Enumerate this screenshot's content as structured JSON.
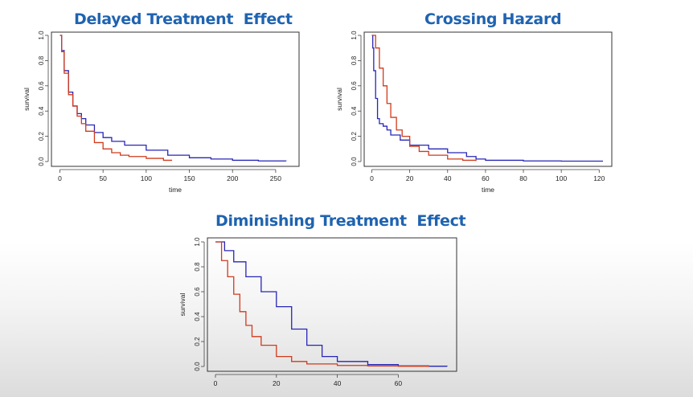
{
  "chart_data": [
    {
      "type": "line",
      "title": "Delayed Treatment  Effect",
      "xlabel": "time",
      "ylabel": "survival",
      "xlim": [
        0,
        265
      ],
      "ylim": [
        0,
        1.0
      ],
      "xticks": [
        "0",
        "50",
        "100",
        "150",
        "200",
        "250"
      ],
      "yticks": [
        "0.0",
        "0.2",
        "0.4",
        "0.6",
        "0.8",
        "1.0"
      ],
      "series": [
        {
          "name": "blue",
          "color": "#2626b8",
          "x": [
            0,
            2,
            5,
            10,
            15,
            20,
            25,
            30,
            40,
            50,
            60,
            75,
            100,
            125,
            150,
            175,
            200,
            230,
            262
          ],
          "y": [
            1.0,
            0.88,
            0.72,
            0.55,
            0.44,
            0.38,
            0.34,
            0.29,
            0.23,
            0.19,
            0.16,
            0.13,
            0.09,
            0.05,
            0.03,
            0.02,
            0.01,
            0.005,
            0.003
          ]
        },
        {
          "name": "red",
          "color": "#d03a1c",
          "x": [
            0,
            2,
            5,
            10,
            15,
            20,
            25,
            30,
            40,
            50,
            60,
            70,
            80,
            100,
            120,
            130
          ],
          "y": [
            1.0,
            0.87,
            0.7,
            0.53,
            0.44,
            0.36,
            0.3,
            0.24,
            0.15,
            0.1,
            0.07,
            0.05,
            0.04,
            0.025,
            0.01,
            0.01
          ]
        }
      ]
    },
    {
      "type": "line",
      "title": "Crossing Hazard",
      "xlabel": "time",
      "ylabel": "survival",
      "xlim": [
        0,
        122
      ],
      "ylim": [
        0,
        1.0
      ],
      "xticks": [
        "0",
        "20",
        "40",
        "60",
        "80",
        "100",
        "120"
      ],
      "yticks": [
        "0.0",
        "0.2",
        "0.4",
        "0.6",
        "0.8",
        "1.0"
      ],
      "series": [
        {
          "name": "blue",
          "color": "#2626b8",
          "x": [
            0,
            0.5,
            1,
            2,
            3,
            4,
            6,
            8,
            10,
            15,
            20,
            30,
            40,
            50,
            55,
            60,
            80,
            100,
            122
          ],
          "y": [
            1.0,
            0.9,
            0.72,
            0.5,
            0.34,
            0.3,
            0.28,
            0.25,
            0.21,
            0.17,
            0.13,
            0.1,
            0.07,
            0.04,
            0.02,
            0.01,
            0.005,
            0.003,
            0.003
          ]
        },
        {
          "name": "red",
          "color": "#d03a1c",
          "x": [
            0,
            2,
            4,
            6,
            8,
            10,
            13,
            16,
            20,
            25,
            30,
            40,
            48,
            55
          ],
          "y": [
            1.0,
            0.9,
            0.74,
            0.6,
            0.46,
            0.35,
            0.25,
            0.2,
            0.12,
            0.08,
            0.05,
            0.02,
            0.01,
            0.005
          ]
        }
      ]
    },
    {
      "type": "line",
      "title": "Diminishing Treatment  Effect",
      "xlabel": "",
      "ylabel": "survival",
      "xlim": [
        0,
        76
      ],
      "ylim": [
        0,
        1.0
      ],
      "xticks": [
        "0",
        "20",
        "40",
        "60"
      ],
      "yticks": [
        "0.0",
        "0.2",
        "0.4",
        "0.6",
        "0.8",
        "1.0"
      ],
      "series": [
        {
          "name": "blue",
          "color": "#2626b8",
          "x": [
            0,
            3,
            6,
            10,
            15,
            20,
            25,
            30,
            35,
            40,
            50,
            60,
            70,
            76
          ],
          "y": [
            1.0,
            0.93,
            0.84,
            0.72,
            0.6,
            0.48,
            0.3,
            0.17,
            0.08,
            0.04,
            0.015,
            0.005,
            0.002,
            0.0
          ]
        },
        {
          "name": "red",
          "color": "#d03a1c",
          "x": [
            0,
            2,
            4,
            6,
            8,
            10,
            12,
            15,
            20,
            25,
            30,
            40,
            50,
            60,
            70
          ],
          "y": [
            1.0,
            0.85,
            0.72,
            0.58,
            0.44,
            0.33,
            0.24,
            0.17,
            0.08,
            0.04,
            0.02,
            0.008,
            0.004,
            0.002,
            0.0
          ]
        }
      ]
    }
  ]
}
